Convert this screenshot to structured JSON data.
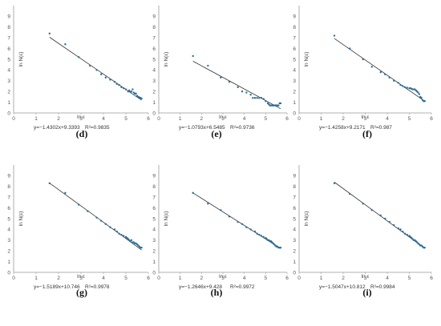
{
  "chart_data": [
    {
      "type": "scatter",
      "panel_label": "(d)",
      "xlabel": "ln ε",
      "ylabel": "ln N(ε)",
      "xlim": [
        0,
        6
      ],
      "ylim": [
        0,
        10
      ],
      "xticks": [
        "0",
        "1",
        "2",
        "3",
        "4",
        "5",
        "6"
      ],
      "yticks": [
        "0",
        "1",
        "2",
        "3",
        "4",
        "5",
        "6",
        "7",
        "8",
        "9"
      ],
      "equation": "y=−1.4302x+9.3393",
      "r2": "R²=0.9835",
      "fit": {
        "slope": -1.4302,
        "intercept": 9.3393,
        "x_range": [
          1.6,
          5.7
        ]
      },
      "colors": {
        "points": "#2a6f97",
        "line": "#333333",
        "axis": "#999999"
      },
      "points": [
        [
          1.6,
          7.4
        ],
        [
          2.3,
          6.4
        ],
        [
          2.9,
          5.2
        ],
        [
          3.4,
          4.4
        ],
        [
          3.7,
          4.0
        ],
        [
          3.9,
          3.6
        ],
        [
          4.1,
          3.3
        ],
        [
          4.3,
          3.1
        ],
        [
          4.5,
          2.9
        ],
        [
          4.6,
          2.7
        ],
        [
          4.7,
          2.6
        ],
        [
          4.8,
          2.4
        ],
        [
          4.9,
          2.3
        ],
        [
          5.0,
          2.2
        ],
        [
          5.1,
          2.0
        ],
        [
          5.15,
          2.1
        ],
        [
          5.2,
          1.95
        ],
        [
          5.25,
          2.0
        ],
        [
          5.3,
          2.2
        ],
        [
          5.35,
          1.9
        ],
        [
          5.4,
          1.8
        ],
        [
          5.45,
          1.8
        ],
        [
          5.5,
          1.6
        ],
        [
          5.55,
          1.5
        ],
        [
          5.6,
          1.45
        ],
        [
          5.65,
          1.4
        ],
        [
          5.7,
          1.35
        ]
      ]
    },
    {
      "type": "scatter",
      "panel_label": "(e)",
      "xlabel": "ln ε",
      "ylabel": "ln N(ε)",
      "xlim": [
        0,
        6
      ],
      "ylim": [
        0,
        10
      ],
      "xticks": [
        "0",
        "1",
        "2",
        "3",
        "4",
        "5",
        "6"
      ],
      "yticks": [
        "0",
        "1",
        "2",
        "3",
        "4",
        "5",
        "6",
        "7",
        "8",
        "9"
      ],
      "equation": "y=−1.0793x+6.5485",
      "r2": "R²=0.9736",
      "fit": {
        "slope": -1.0793,
        "intercept": 6.5485,
        "x_range": [
          1.6,
          5.7
        ]
      },
      "colors": {
        "points": "#2a6f97",
        "line": "#333333",
        "axis": "#999999"
      },
      "points": [
        [
          1.6,
          5.3
        ],
        [
          2.3,
          4.4
        ],
        [
          2.9,
          3.3
        ],
        [
          3.3,
          2.9
        ],
        [
          3.7,
          2.4
        ],
        [
          3.9,
          2.0
        ],
        [
          4.1,
          1.9
        ],
        [
          4.3,
          1.7
        ],
        [
          4.4,
          1.4
        ],
        [
          4.5,
          1.4
        ],
        [
          4.6,
          1.4
        ],
        [
          4.7,
          1.4
        ],
        [
          4.8,
          1.4
        ],
        [
          4.9,
          1.3
        ],
        [
          5.0,
          1.1
        ],
        [
          5.1,
          0.9
        ],
        [
          5.15,
          0.8
        ],
        [
          5.2,
          0.7
        ],
        [
          5.25,
          0.7
        ],
        [
          5.3,
          0.7
        ],
        [
          5.35,
          0.7
        ],
        [
          5.4,
          0.7
        ],
        [
          5.45,
          0.7
        ],
        [
          5.5,
          0.7
        ],
        [
          5.55,
          0.7
        ],
        [
          5.6,
          0.7
        ],
        [
          5.65,
          0.9
        ],
        [
          5.7,
          0.9
        ]
      ]
    },
    {
      "type": "scatter",
      "panel_label": "(f)",
      "xlabel": "ln ε",
      "ylabel": "ln N(ε)",
      "xlim": [
        0,
        6
      ],
      "ylim": [
        0,
        10
      ],
      "xticks": [
        "0",
        "1",
        "2",
        "3",
        "4",
        "5",
        "6"
      ],
      "yticks": [
        "0",
        "1",
        "2",
        "3",
        "4",
        "5",
        "6",
        "7",
        "8",
        "9"
      ],
      "equation": "y=−1.4258x+9.2171",
      "r2": "R²=0.987",
      "fit": {
        "slope": -1.4258,
        "intercept": 9.2171,
        "x_range": [
          1.6,
          5.7
        ]
      },
      "colors": {
        "points": "#2a6f97",
        "line": "#333333",
        "axis": "#999999"
      },
      "points": [
        [
          1.6,
          7.2
        ],
        [
          2.3,
          6.0
        ],
        [
          2.9,
          5.0
        ],
        [
          3.3,
          4.3
        ],
        [
          3.7,
          3.8
        ],
        [
          3.9,
          3.6
        ],
        [
          4.1,
          3.3
        ],
        [
          4.3,
          3.0
        ],
        [
          4.5,
          2.8
        ],
        [
          4.6,
          2.6
        ],
        [
          4.7,
          2.5
        ],
        [
          4.8,
          2.4
        ],
        [
          4.9,
          2.35
        ],
        [
          5.0,
          2.3
        ],
        [
          5.05,
          2.3
        ],
        [
          5.1,
          2.25
        ],
        [
          5.15,
          2.2
        ],
        [
          5.2,
          2.2
        ],
        [
          5.25,
          2.2
        ],
        [
          5.3,
          2.1
        ],
        [
          5.35,
          2.0
        ],
        [
          5.4,
          1.9
        ],
        [
          5.45,
          1.75
        ],
        [
          5.5,
          1.5
        ],
        [
          5.55,
          1.4
        ],
        [
          5.6,
          1.2
        ],
        [
          5.65,
          1.1
        ],
        [
          5.7,
          1.1
        ]
      ]
    },
    {
      "type": "scatter",
      "panel_label": "(g)",
      "xlabel": "ln ε",
      "ylabel": "ln N(ε)",
      "xlim": [
        0,
        6
      ],
      "ylim": [
        0,
        10
      ],
      "xticks": [
        "0",
        "1",
        "2",
        "3",
        "4",
        "5",
        "6"
      ],
      "yticks": [
        "0",
        "1",
        "2",
        "3",
        "4",
        "5",
        "6",
        "7",
        "8",
        "9"
      ],
      "equation": "y=−1.5189x+10.746",
      "r2": "R²=0.9978",
      "fit": {
        "slope": -1.5189,
        "intercept": 10.746,
        "x_range": [
          1.6,
          5.7
        ]
      },
      "colors": {
        "points": "#2a6f97",
        "line": "#333333",
        "axis": "#999999"
      },
      "points": [
        [
          1.6,
          8.3
        ],
        [
          2.3,
          7.4
        ],
        [
          2.9,
          6.3
        ],
        [
          3.3,
          5.7
        ],
        [
          3.7,
          5.1
        ],
        [
          3.9,
          4.8
        ],
        [
          4.1,
          4.5
        ],
        [
          4.3,
          4.2
        ],
        [
          4.5,
          4.0
        ],
        [
          4.6,
          3.8
        ],
        [
          4.7,
          3.6
        ],
        [
          4.8,
          3.5
        ],
        [
          4.9,
          3.4
        ],
        [
          5.0,
          3.3
        ],
        [
          5.05,
          3.2
        ],
        [
          5.1,
          3.1
        ],
        [
          5.15,
          3.0
        ],
        [
          5.2,
          2.9
        ],
        [
          5.25,
          3.0
        ],
        [
          5.3,
          2.8
        ],
        [
          5.35,
          2.8
        ],
        [
          5.4,
          2.7
        ],
        [
          5.45,
          2.7
        ],
        [
          5.5,
          2.6
        ],
        [
          5.55,
          2.5
        ],
        [
          5.6,
          2.4
        ],
        [
          5.65,
          2.3
        ],
        [
          5.7,
          2.3
        ]
      ]
    },
    {
      "type": "scatter",
      "panel_label": "(h)",
      "xlabel": "ln ε",
      "ylabel": "ln N(ε)",
      "xlim": [
        0,
        6
      ],
      "ylim": [
        0,
        10
      ],
      "xticks": [
        "0",
        "1",
        "2",
        "3",
        "4",
        "5",
        "6"
      ],
      "yticks": [
        "0",
        "1",
        "2",
        "3",
        "4",
        "5",
        "6",
        "7",
        "8",
        "9"
      ],
      "equation": "y=−1.2646x+9.428",
      "r2": "R²=0.9972",
      "fit": {
        "slope": -1.2646,
        "intercept": 9.428,
        "x_range": [
          1.6,
          5.7
        ]
      },
      "colors": {
        "points": "#2a6f97",
        "line": "#333333",
        "axis": "#999999"
      },
      "points": [
        [
          1.6,
          7.4
        ],
        [
          2.3,
          6.4
        ],
        [
          2.9,
          5.8
        ],
        [
          3.3,
          5.2
        ],
        [
          3.7,
          4.7
        ],
        [
          3.9,
          4.5
        ],
        [
          4.1,
          4.2
        ],
        [
          4.3,
          4.0
        ],
        [
          4.5,
          3.8
        ],
        [
          4.6,
          3.6
        ],
        [
          4.7,
          3.5
        ],
        [
          4.8,
          3.4
        ],
        [
          4.9,
          3.3
        ],
        [
          5.0,
          3.2
        ],
        [
          5.05,
          3.1
        ],
        [
          5.1,
          3.0
        ],
        [
          5.15,
          3.0
        ],
        [
          5.2,
          2.9
        ],
        [
          5.25,
          2.9
        ],
        [
          5.3,
          2.8
        ],
        [
          5.35,
          2.7
        ],
        [
          5.4,
          2.6
        ],
        [
          5.45,
          2.5
        ],
        [
          5.5,
          2.4
        ],
        [
          5.55,
          2.4
        ],
        [
          5.6,
          2.3
        ],
        [
          5.65,
          2.3
        ],
        [
          5.7,
          2.3
        ]
      ]
    },
    {
      "type": "scatter",
      "panel_label": "(i)",
      "xlabel": "ln ε",
      "ylabel": "ln N(ε)",
      "xlim": [
        0,
        6
      ],
      "ylim": [
        0,
        10
      ],
      "xticks": [
        "0",
        "1",
        "2",
        "3",
        "4",
        "5",
        "6"
      ],
      "yticks": [
        "0",
        "1",
        "2",
        "3",
        "4",
        "5",
        "6",
        "7",
        "8",
        "9"
      ],
      "equation": "y=−1.5047x+10.812",
      "r2": "R²=0.9984",
      "fit": {
        "slope": -1.5047,
        "intercept": 10.812,
        "x_range": [
          1.6,
          5.7
        ]
      },
      "colors": {
        "points": "#2a6f97",
        "line": "#333333",
        "axis": "#999999"
      },
      "points": [
        [
          1.6,
          8.3
        ],
        [
          2.3,
          7.3
        ],
        [
          2.9,
          6.4
        ],
        [
          3.3,
          5.8
        ],
        [
          3.7,
          5.3
        ],
        [
          3.9,
          5.0
        ],
        [
          4.1,
          4.7
        ],
        [
          4.3,
          4.4
        ],
        [
          4.5,
          4.1
        ],
        [
          4.6,
          4.0
        ],
        [
          4.7,
          3.8
        ],
        [
          4.8,
          3.6
        ],
        [
          4.9,
          3.5
        ],
        [
          5.0,
          3.4
        ],
        [
          5.05,
          3.3
        ],
        [
          5.1,
          3.2
        ],
        [
          5.15,
          3.1
        ],
        [
          5.2,
          3.0
        ],
        [
          5.25,
          3.0
        ],
        [
          5.3,
          2.9
        ],
        [
          5.35,
          2.8
        ],
        [
          5.4,
          2.7
        ],
        [
          5.45,
          2.6
        ],
        [
          5.5,
          2.5
        ],
        [
          5.55,
          2.5
        ],
        [
          5.6,
          2.4
        ],
        [
          5.65,
          2.3
        ],
        [
          5.7,
          2.3
        ]
      ]
    }
  ]
}
